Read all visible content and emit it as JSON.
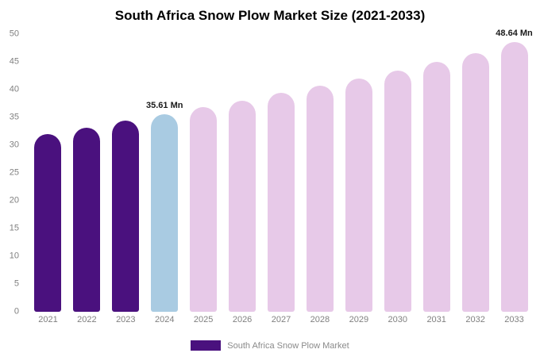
{
  "title": "South Africa Snow Plow Market Size (2021-2033)",
  "legend": {
    "label": "South Africa Snow Plow Market",
    "swatch_color": "#4a117e"
  },
  "colors": {
    "historical": "#4a117e",
    "current": "#a9cbe2",
    "forecast": "#e7c9e8",
    "axis_text": "#808080",
    "annotation": "#1a1a1a"
  },
  "chart_data": {
    "type": "bar",
    "title": "South Africa Snow Plow Market Size (2021-2033)",
    "categories": [
      "2021",
      "2022",
      "2023",
      "2024",
      "2025",
      "2026",
      "2027",
      "2028",
      "2029",
      "2030",
      "2031",
      "2032",
      "2033"
    ],
    "values": [
      32.0,
      33.2,
      34.4,
      35.61,
      36.8,
      38.0,
      39.4,
      40.7,
      42.0,
      43.5,
      45.0,
      46.6,
      48.64
    ],
    "color_roles": [
      "historical",
      "historical",
      "historical",
      "current",
      "forecast",
      "forecast",
      "forecast",
      "forecast",
      "forecast",
      "forecast",
      "forecast",
      "forecast",
      "forecast"
    ],
    "annotations": [
      {
        "category": "2024",
        "text": "35.61 Mn"
      },
      {
        "category": "2033",
        "text": "48.64 Mn"
      }
    ],
    "xlabel": "",
    "ylabel": "",
    "ylim": [
      0,
      50
    ],
    "ytick_step": 5,
    "grid": false,
    "legend_position": "bottom",
    "legend_entries": [
      "South Africa Snow Plow Market"
    ],
    "unit": "Mn"
  }
}
